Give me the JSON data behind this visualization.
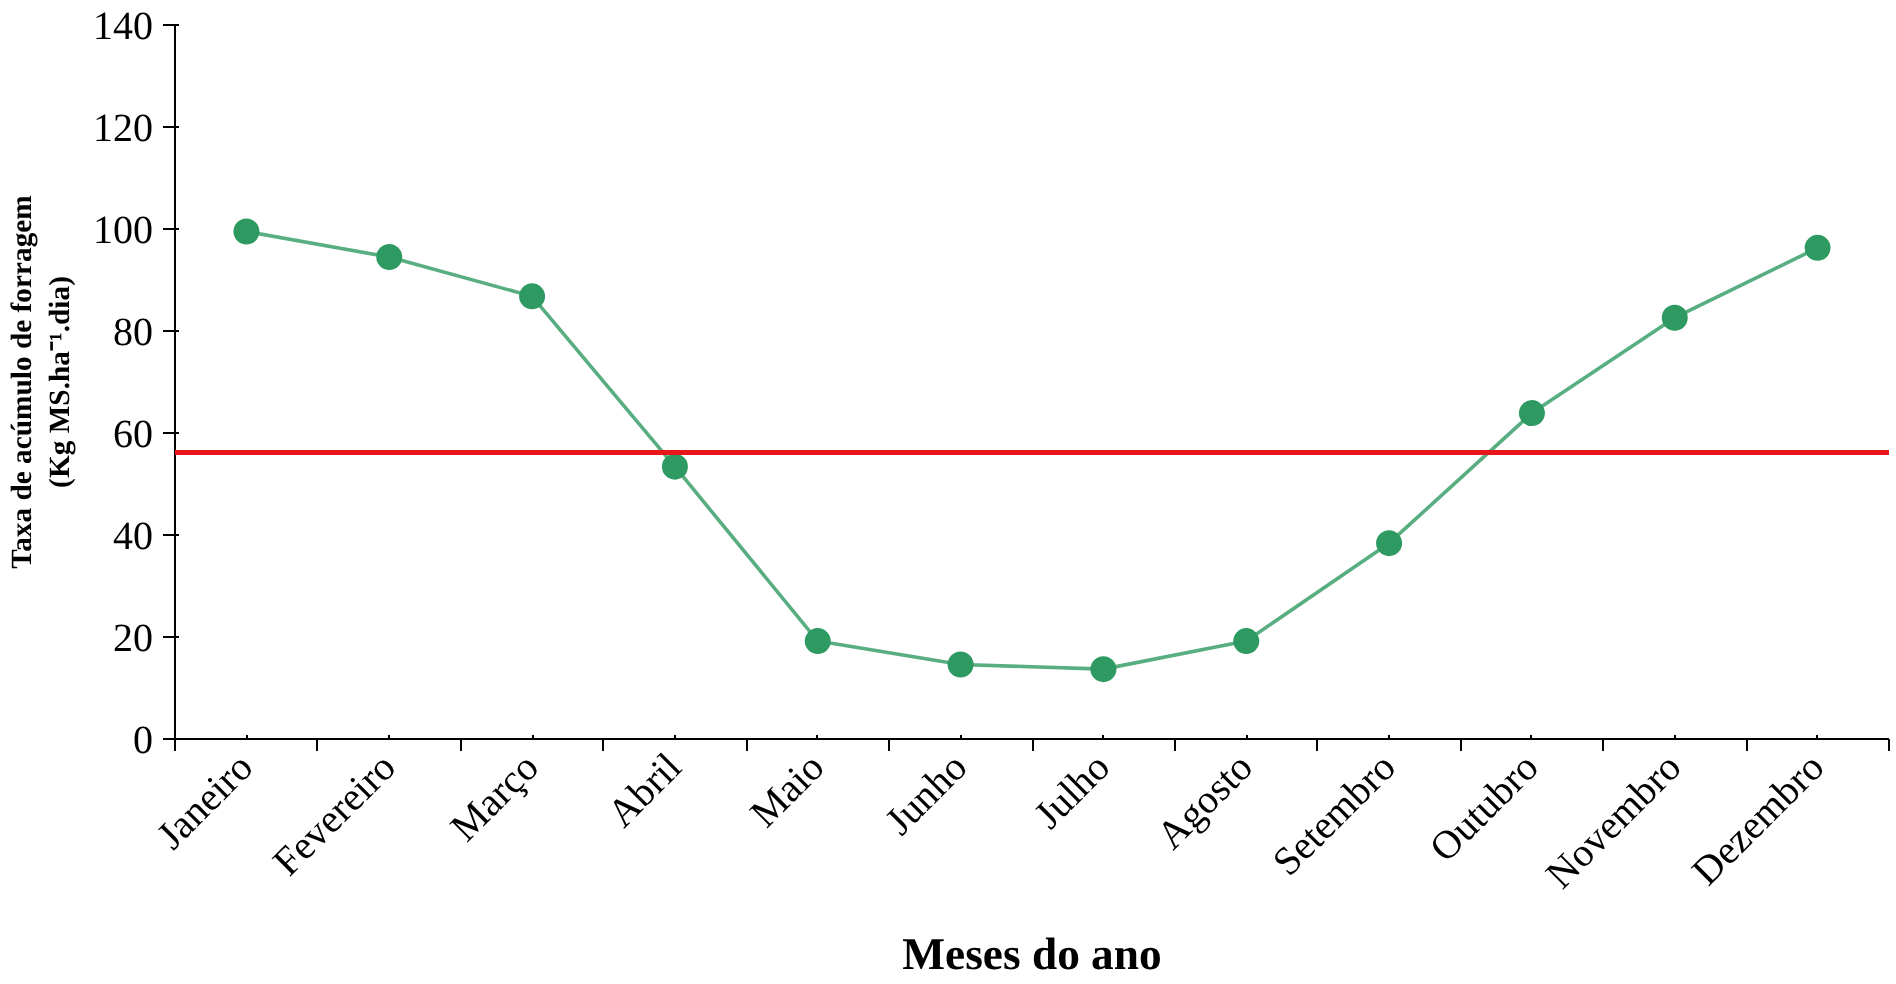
{
  "chart_data": {
    "type": "line",
    "xlabel": "Meses do ano",
    "ylabel": "Taxa de acúmulo de forragem\n(Kg MS.ha⁻¹.dia)",
    "categories": [
      "Janeiro",
      "Fevereiro",
      "Março",
      "Abril",
      "Maio",
      "Junho",
      "Julho",
      "Agosto",
      "Setembro",
      "Outubro",
      "Novembro",
      "Dezembro"
    ],
    "series": [
      {
        "color": "#2e9a62",
        "values": [
          99.5,
          94.5,
          86.8,
          53.4,
          19.2,
          14.6,
          13.7,
          19.2,
          38.4,
          63.9,
          82.6,
          96.3
        ]
      }
    ],
    "ylim": [
      0,
      140
    ],
    "yticks": [
      0,
      20,
      40,
      60,
      80,
      100,
      120,
      140
    ],
    "marker": "circle",
    "line_style": "solid",
    "grid": false,
    "ref_lines": [
      {
        "axis": "y",
        "value": 56.2,
        "color": "#e8151b"
      }
    ]
  }
}
